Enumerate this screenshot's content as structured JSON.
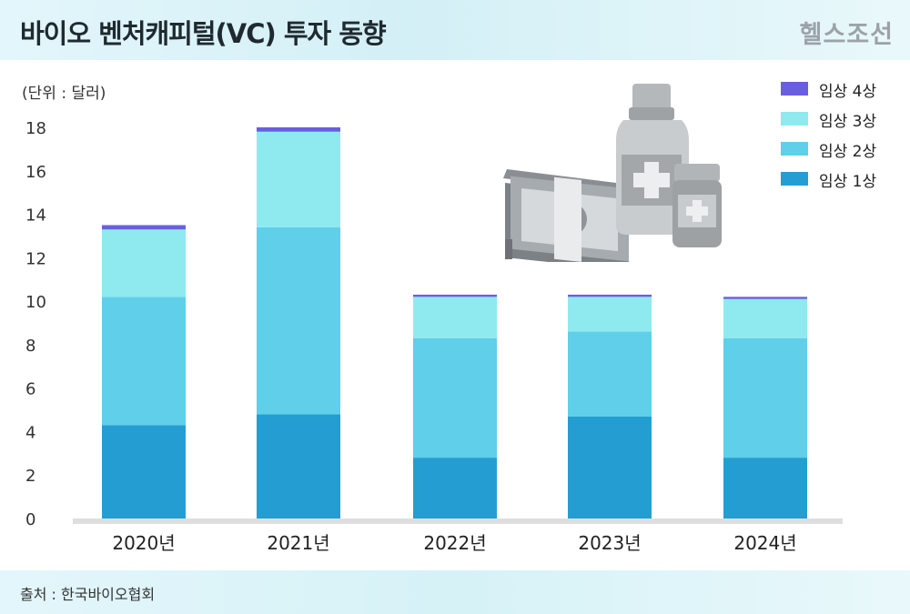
{
  "header": {
    "title": "바이오 벤처캐피털(VC) 투자 동향",
    "brand": "헬스조선"
  },
  "unit_label": "(단위 : 달러)",
  "footer": {
    "source": "출처 : 한국바이오협회"
  },
  "colors": {
    "phase1": "#249ed2",
    "phase2": "#5fcfea",
    "phase3": "#8eeaee",
    "phase4": "#6a5ee0"
  },
  "chart_data": {
    "type": "bar",
    "stacked": true,
    "categories": [
      "2020년",
      "2021년",
      "2022년",
      "2023년",
      "2024년"
    ],
    "series": [
      {
        "name": "임상 1상",
        "values": [
          4.3,
          4.8,
          2.8,
          4.7,
          2.8
        ]
      },
      {
        "name": "임상 2상",
        "values": [
          5.9,
          8.6,
          5.5,
          3.9,
          5.5
        ]
      },
      {
        "name": "임상 3상",
        "values": [
          3.1,
          4.4,
          1.9,
          1.6,
          1.8
        ]
      },
      {
        "name": "임상 4상",
        "values": [
          0.2,
          0.2,
          0.1,
          0.1,
          0.1
        ]
      }
    ],
    "legend": [
      "임상 4상",
      "임상 3상",
      "임상 2상",
      "임상 1상"
    ],
    "ylim": [
      0,
      18
    ],
    "yticks": [
      "0",
      "2",
      "4",
      "6",
      "8",
      "10",
      "12",
      "14",
      "16",
      "18"
    ],
    "grid": false,
    "legend_position": "top-right"
  }
}
